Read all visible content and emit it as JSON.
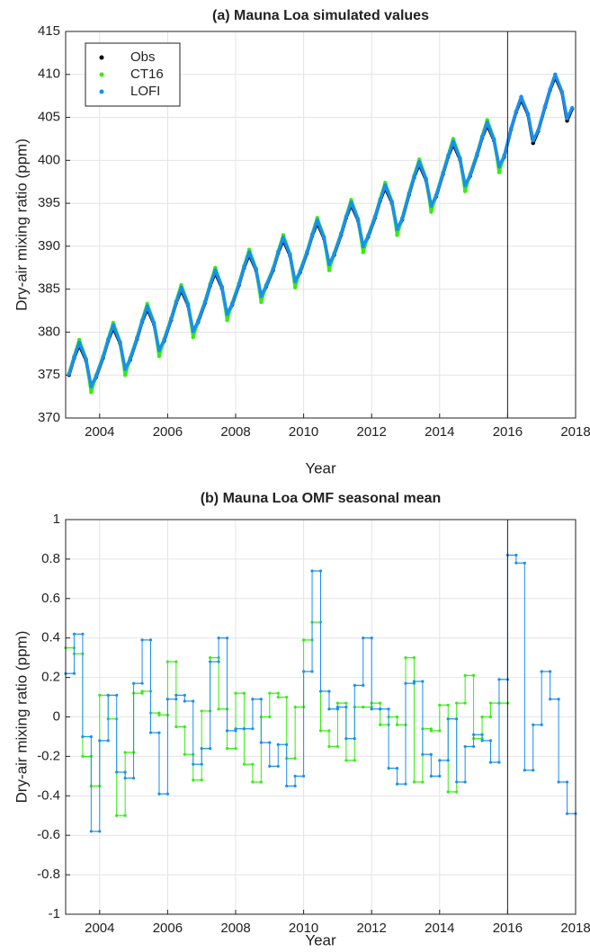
{
  "chart_data": [
    {
      "type": "scatter",
      "title": "(a) Mauna Loa simulated values",
      "x_label": "Year",
      "y_label": "Dry-air mixing ratio (ppm)",
      "xlim": [
        2003,
        2018
      ],
      "xticks": [
        2004,
        2006,
        2008,
        2010,
        2012,
        2014,
        2016,
        2018
      ],
      "ylim": [
        370,
        415
      ],
      "yticks": [
        370,
        375,
        380,
        385,
        390,
        395,
        400,
        405,
        410,
        415
      ],
      "grid": true,
      "legend": "upper left",
      "vline": 2016,
      "x": [
        2003.1,
        2003.25,
        2003.4,
        2003.6,
        2003.75,
        2003.9,
        2004.1,
        2004.25,
        2004.4,
        2004.6,
        2004.75,
        2004.9,
        2005.1,
        2005.25,
        2005.4,
        2005.6,
        2005.75,
        2005.9,
        2006.1,
        2006.25,
        2006.4,
        2006.6,
        2006.75,
        2006.9,
        2007.1,
        2007.25,
        2007.4,
        2007.6,
        2007.75,
        2007.9,
        2008.1,
        2008.25,
        2008.4,
        2008.6,
        2008.75,
        2008.9,
        2009.1,
        2009.25,
        2009.4,
        2009.6,
        2009.75,
        2009.9,
        2010.1,
        2010.25,
        2010.4,
        2010.6,
        2010.75,
        2010.9,
        2011.1,
        2011.25,
        2011.4,
        2011.6,
        2011.75,
        2011.9,
        2012.1,
        2012.25,
        2012.4,
        2012.6,
        2012.75,
        2012.9,
        2013.1,
        2013.25,
        2013.4,
        2013.6,
        2013.75,
        2013.9,
        2014.1,
        2014.25,
        2014.4,
        2014.6,
        2014.75,
        2014.9,
        2015.1,
        2015.25,
        2015.4,
        2015.6,
        2015.75,
        2015.9,
        2016.1,
        2016.25,
        2016.4,
        2016.6,
        2016.75,
        2016.9,
        2017.1,
        2017.25,
        2017.4,
        2017.6,
        2017.75,
        2017.9
      ],
      "series": [
        {
          "name": "Obs",
          "color": "#000000",
          "values": [
            375,
            377,
            378.5,
            376.7,
            373.4,
            374.8,
            377,
            379,
            380.5,
            378.7,
            375.4,
            376.8,
            379.2,
            381.2,
            382.7,
            380.9,
            377.6,
            379,
            381.4,
            383.4,
            384.9,
            383.1,
            379.8,
            381.2,
            383.4,
            385.4,
            386.9,
            385.1,
            381.8,
            383.2,
            385.5,
            387.5,
            389,
            387.2,
            383.9,
            385.3,
            387.2,
            389.2,
            390.7,
            388.9,
            385.6,
            387,
            389.2,
            391.2,
            392.7,
            390.9,
            387.6,
            389,
            391.3,
            393.3,
            394.8,
            393,
            389.7,
            391.1,
            393.3,
            395.3,
            396.8,
            395,
            391.7,
            393.1,
            396,
            398,
            399.5,
            397.7,
            394.4,
            395.8,
            398.4,
            400.4,
            401.9,
            400.1,
            396.8,
            398.2,
            400.6,
            402.6,
            404.1,
            402.3,
            399,
            400.4,
            403.6,
            405.6,
            407.1,
            405.3,
            402,
            403.4,
            406.2,
            408.2,
            409.7,
            407.9,
            404.6,
            406
          ]
        },
        {
          "name": "CT16",
          "color": "#33ee11",
          "values": [
            375.2,
            377.2,
            379.1,
            376.9,
            373,
            375,
            377.2,
            379.2,
            381.1,
            378.9,
            375,
            377,
            379.4,
            381.4,
            383.3,
            381.1,
            377.2,
            379.2,
            381.6,
            383.6,
            385.5,
            383.3,
            379.4,
            381.4,
            383.6,
            385.6,
            387.5,
            385.3,
            381.4,
            383.4,
            385.7,
            387.7,
            389.6,
            387.4,
            383.5,
            385.5,
            387.4,
            389.4,
            391.3,
            389.1,
            385.2,
            387.2,
            389.4,
            391.4,
            393.3,
            391.1,
            387.2,
            389.2,
            391.5,
            393.5,
            395.4,
            393.2,
            389.3,
            391.3,
            393.5,
            395.5,
            397.4,
            395.2,
            391.3,
            393.3,
            396.2,
            398.2,
            400.1,
            397.9,
            394,
            396,
            398.6,
            400.6,
            402.5,
            400.3,
            396.4,
            398.4,
            400.8,
            402.8,
            404.7,
            402.5,
            398.6,
            400.6,
            null,
            null,
            null,
            null,
            null,
            null,
            null,
            null,
            null,
            null,
            null,
            null
          ]
        },
        {
          "name": "LOFI",
          "color": "#1a8ff0",
          "values": [
            375.1,
            377.1,
            378.8,
            376.8,
            373.7,
            374.9,
            377.1,
            379.1,
            380.8,
            378.8,
            375.7,
            376.9,
            379.3,
            381.3,
            383,
            381,
            377.9,
            379.1,
            381.5,
            383.5,
            385.2,
            383.2,
            380.1,
            381.3,
            383.5,
            385.5,
            387.2,
            385.2,
            382.1,
            383.3,
            385.6,
            387.6,
            389.3,
            387.3,
            384.2,
            385.4,
            387.3,
            389.3,
            391,
            389,
            385.9,
            387.1,
            389.3,
            391.3,
            393,
            391,
            387.9,
            389.1,
            391.4,
            393.4,
            395.1,
            393.1,
            390,
            391.2,
            393.4,
            395.4,
            397.1,
            395.1,
            392,
            393.2,
            396.1,
            398.1,
            399.8,
            397.8,
            394.7,
            395.9,
            398.5,
            400.5,
            402.2,
            400.2,
            397.1,
            398.3,
            400.7,
            402.7,
            404.4,
            402.4,
            399.3,
            400.5,
            403.7,
            405.7,
            407.4,
            405.4,
            402.3,
            403.5,
            406.3,
            408.3,
            410,
            408,
            404.9,
            406.1
          ]
        }
      ]
    },
    {
      "type": "step",
      "title": "(b) Mauna Loa OMF seasonal mean",
      "x_label": "Year",
      "y_label": "Dry-air mixing ratio (ppm)",
      "xlim": [
        2003,
        2018
      ],
      "xticks": [
        2004,
        2006,
        2008,
        2010,
        2012,
        2014,
        2016,
        2018
      ],
      "ylim": [
        -1,
        1
      ],
      "yticks": [
        -1,
        -0.8,
        -0.6,
        -0.4,
        -0.2,
        0,
        0.2,
        0.4,
        0.6,
        0.8,
        1
      ],
      "grid": true,
      "vline": 2016,
      "step_width": 0.25,
      "x": [
        2003,
        2003.25,
        2003.5,
        2003.75,
        2004,
        2004.25,
        2004.5,
        2004.75,
        2005,
        2005.25,
        2005.5,
        2005.75,
        2006,
        2006.25,
        2006.5,
        2006.75,
        2007,
        2007.25,
        2007.5,
        2007.75,
        2008,
        2008.25,
        2008.5,
        2008.75,
        2009,
        2009.25,
        2009.5,
        2009.75,
        2010,
        2010.25,
        2010.5,
        2010.75,
        2011,
        2011.25,
        2011.5,
        2011.75,
        2012,
        2012.25,
        2012.5,
        2012.75,
        2013,
        2013.25,
        2013.5,
        2013.75,
        2014,
        2014.25,
        2014.5,
        2014.75,
        2015,
        2015.25,
        2015.5,
        2015.75,
        2016,
        2016.25,
        2016.5,
        2016.75,
        2017,
        2017.25,
        2017.5,
        2017.75
      ],
      "series": [
        {
          "color": "#33ee11",
          "values": [
            0.35,
            0.32,
            -0.2,
            -0.35,
            0.11,
            -0.01,
            -0.5,
            -0.18,
            0.12,
            0.13,
            0.02,
            0.01,
            0.28,
            -0.05,
            -0.19,
            -0.32,
            0.03,
            0.3,
            0.04,
            -0.16,
            0.12,
            -0.24,
            -0.33,
            0,
            0.12,
            0.1,
            -0.21,
            0.05,
            0.39,
            0.48,
            -0.07,
            -0.15,
            0.07,
            -0.22,
            0.05,
            0.05,
            0.07,
            -0.04,
            0,
            -0.04,
            0.3,
            -0.33,
            -0.06,
            -0.07,
            0.06,
            -0.38,
            0.07,
            0.21,
            -0.11,
            0,
            0.07,
            0.07,
            null,
            null,
            null,
            null,
            null,
            null,
            null,
            null
          ]
        },
        {
          "color": "#1a8ff0",
          "values": [
            0.22,
            0.42,
            -0.1,
            -0.58,
            -0.12,
            0.11,
            -0.28,
            -0.31,
            0.17,
            0.39,
            -0.08,
            -0.39,
            0.09,
            0.11,
            0.08,
            -0.24,
            -0.16,
            0.28,
            0.4,
            -0.07,
            -0.06,
            -0.06,
            0.09,
            -0.13,
            -0.25,
            -0.14,
            -0.35,
            -0.3,
            0.23,
            0.74,
            0.13,
            0.04,
            0.05,
            -0.11,
            0.16,
            0.4,
            0.04,
            0.04,
            -0.26,
            -0.34,
            0.17,
            0.18,
            -0.19,
            -0.3,
            -0.22,
            -0.01,
            -0.33,
            -0.15,
            -0.09,
            -0.12,
            -0.23,
            0.19,
            0.82,
            0.78,
            -0.27,
            -0.04,
            0.23,
            0.09,
            -0.33,
            -0.49
          ]
        }
      ]
    }
  ]
}
